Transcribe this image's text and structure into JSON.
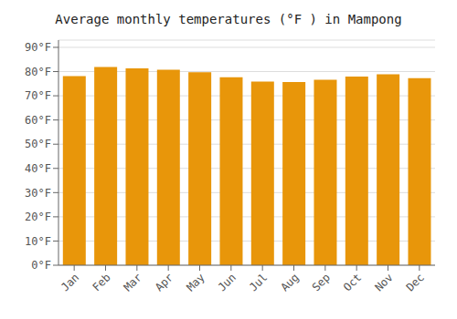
{
  "chart_data": {
    "type": "bar",
    "title": "Average monthly temperatures (°F ) in Mampong",
    "categories": [
      "Jan",
      "Feb",
      "Mar",
      "Apr",
      "May",
      "Jun",
      "Jul",
      "Aug",
      "Sep",
      "Oct",
      "Nov",
      "Dec"
    ],
    "values": [
      78.1,
      81.9,
      81.3,
      80.8,
      79.7,
      77.7,
      75.9,
      75.7,
      76.6,
      77.9,
      78.9,
      77.3
    ],
    "color": "#E8960A",
    "ylim": [
      0,
      93
    ],
    "yticks": [
      {
        "value": 0,
        "label": "0°F"
      },
      {
        "value": 10,
        "label": "10°F"
      },
      {
        "value": 20,
        "label": "20°F"
      },
      {
        "value": 30,
        "label": "30°F"
      },
      {
        "value": 40,
        "label": "40°F"
      },
      {
        "value": 50,
        "label": "50°F"
      },
      {
        "value": 60,
        "label": "60°F"
      },
      {
        "value": 70,
        "label": "70°F"
      },
      {
        "value": 80,
        "label": "80°F"
      },
      {
        "value": 90,
        "label": "90°F"
      }
    ],
    "grid": true
  }
}
